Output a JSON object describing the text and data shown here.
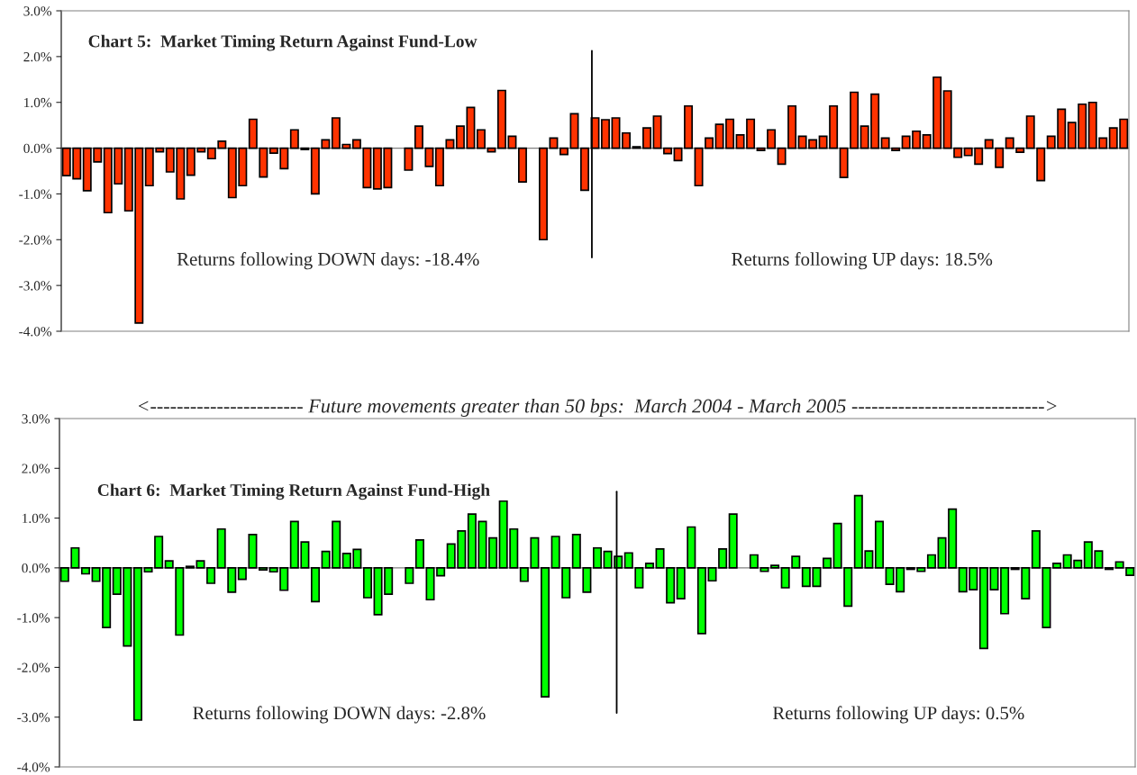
{
  "chart_data": [
    {
      "type": "bar",
      "title": "Chart 5:  Market Timing Return Against Fund-Low",
      "categories": [
        null,
        null,
        null,
        null,
        null,
        null,
        null,
        null,
        null,
        null,
        null,
        null,
        null,
        null,
        null,
        null,
        null,
        null,
        null,
        null,
        null,
        null,
        null,
        null,
        null,
        null,
        null,
        null,
        null,
        null,
        null,
        null,
        null,
        null,
        null,
        null,
        null,
        null,
        null,
        null,
        null,
        null,
        null,
        null,
        null,
        null,
        null,
        null,
        null,
        null,
        null,
        null,
        null,
        null,
        null,
        null,
        null,
        null,
        null,
        null,
        null,
        null,
        null,
        null,
        null,
        null,
        null,
        null,
        null,
        null,
        null,
        null,
        null,
        null,
        null,
        null,
        null,
        null,
        null,
        null,
        null,
        null,
        null,
        null,
        null,
        null,
        null,
        null,
        null,
        null,
        null,
        null,
        null,
        null,
        null,
        null,
        null,
        null,
        null,
        null,
        null,
        null,
        null
      ],
      "values": [
        -0.6,
        -0.67,
        -0.93,
        -0.3,
        -1.41,
        -0.78,
        -1.37,
        -3.82,
        -0.82,
        -0.08,
        -0.52,
        -1.11,
        -0.59,
        -0.08,
        -0.23,
        0.15,
        -1.08,
        -0.82,
        0.63,
        -0.63,
        -0.11,
        -0.45,
        0.4,
        -0.03,
        -1.0,
        0.18,
        0.66,
        0.08,
        0.18,
        -0.86,
        -0.89,
        -0.86,
        null,
        -0.48,
        0.48,
        -0.4,
        -0.82,
        0.18,
        0.48,
        0.89,
        0.4,
        -0.08,
        1.26,
        0.26,
        -0.74,
        null,
        -2.0,
        0.22,
        -0.14,
        0.75,
        -0.92,
        0.66,
        0.62,
        0.66,
        0.33,
        0.03,
        0.44,
        0.7,
        -0.12,
        -0.27,
        0.92,
        -0.82,
        0.22,
        0.52,
        0.63,
        0.29,
        0.63,
        -0.05,
        0.4,
        -0.35,
        0.92,
        0.26,
        0.18,
        0.26,
        0.92,
        -0.64,
        1.22,
        0.48,
        1.18,
        0.22,
        -0.05,
        0.26,
        0.37,
        0.29,
        1.55,
        1.25,
        -0.2,
        -0.16,
        -0.35,
        0.18,
        -0.42,
        0.22,
        -0.09,
        0.7,
        -0.71,
        0.26,
        0.85,
        0.56,
        0.96,
        1.0,
        0.22,
        0.44,
        0.63
      ],
      "color": "#ff3300",
      "ylim": [
        -4,
        3
      ],
      "yticks": [
        {
          "value": -4,
          "label": "-4.0%"
        },
        {
          "value": -3,
          "label": "-3.0%"
        },
        {
          "value": -2,
          "label": "-2.0%"
        },
        {
          "value": -1,
          "label": "-1.0%"
        },
        {
          "value": 0,
          "label": "0.0%"
        },
        {
          "value": 1,
          "label": "1.0%"
        },
        {
          "value": 2,
          "label": "2.0%"
        },
        {
          "value": 3,
          "label": "3.0%"
        }
      ],
      "tick_labels": "y",
      "annotations": [
        "Returns following DOWN days: -18.4%",
        "Returns following UP days: 18.5%"
      ]
    },
    {
      "type": "bar",
      "title": "Chart 6:  Market Timing Return Against Fund-High",
      "categories": [
        null,
        null,
        null,
        null,
        null,
        null,
        null,
        null,
        null,
        null,
        null,
        null,
        null,
        null,
        null,
        null,
        null,
        null,
        null,
        null,
        null,
        null,
        null,
        null,
        null,
        null,
        null,
        null,
        null,
        null,
        null,
        null,
        null,
        null,
        null,
        null,
        null,
        null,
        null,
        null,
        null,
        null,
        null,
        null,
        null,
        null,
        null,
        null,
        null,
        null,
        null,
        null,
        null,
        null,
        null,
        null,
        null,
        null,
        null,
        null,
        null,
        null,
        null,
        null,
        null,
        null,
        null,
        null,
        null,
        null,
        null,
        null,
        null,
        null,
        null,
        null,
        null,
        null,
        null,
        null,
        null,
        null,
        null,
        null,
        null,
        null,
        null,
        null,
        null,
        null,
        null,
        null,
        null,
        null,
        null,
        null,
        null,
        null,
        null,
        null,
        null,
        null,
        null
      ],
      "values": [
        -0.27,
        0.4,
        -0.12,
        -0.27,
        -1.2,
        -0.53,
        -1.57,
        -3.06,
        -0.08,
        0.63,
        0.14,
        -1.35,
        0.03,
        0.14,
        -0.31,
        0.78,
        -0.49,
        -0.23,
        0.67,
        -0.04,
        -0.08,
        -0.45,
        0.93,
        0.52,
        -0.68,
        0.33,
        0.93,
        0.29,
        0.37,
        -0.6,
        -0.94,
        -0.53,
        null,
        -0.31,
        0.56,
        -0.64,
        -0.16,
        0.48,
        0.74,
        1.08,
        0.93,
        0.6,
        1.34,
        0.78,
        -0.27,
        0.6,
        -2.59,
        0.63,
        -0.6,
        0.67,
        -0.49,
        0.4,
        0.33,
        0.23,
        0.3,
        -0.4,
        0.09,
        0.38,
        -0.7,
        -0.62,
        0.82,
        -1.32,
        -0.26,
        0.38,
        1.08,
        null,
        0.26,
        -0.07,
        0.05,
        -0.4,
        0.23,
        -0.37,
        -0.37,
        0.19,
        0.89,
        -0.77,
        1.45,
        0.34,
        0.93,
        -0.33,
        -0.48,
        -0.03,
        -0.07,
        0.26,
        0.6,
        1.18,
        -0.48,
        -0.44,
        -1.62,
        -0.44,
        -0.92,
        -0.03,
        -0.62,
        0.74,
        -1.2,
        0.09,
        0.26,
        0.15,
        0.52,
        0.34,
        -0.03,
        0.12,
        -0.15
      ],
      "color": "#00ff00",
      "ylim": [
        -4,
        3
      ],
      "yticks": [
        {
          "value": -4,
          "label": "-4.0%"
        },
        {
          "value": -3,
          "label": "-3.0%"
        },
        {
          "value": -2,
          "label": "-2.0%"
        },
        {
          "value": -1,
          "label": "-1.0%"
        },
        {
          "value": 0,
          "label": "0.0%"
        },
        {
          "value": 1,
          "label": "1.0%"
        },
        {
          "value": 2,
          "label": "2.0%"
        },
        {
          "value": 3,
          "label": "3.0%"
        }
      ],
      "tick_labels": "y",
      "annotations": [
        "Returns following DOWN days: -2.8%",
        "Returns following UP days: 0.5%",
        "<----------------------- Future movements greater than 50 bps:  March 2004 - March 2005 ----------------------------->"
      ]
    }
  ]
}
